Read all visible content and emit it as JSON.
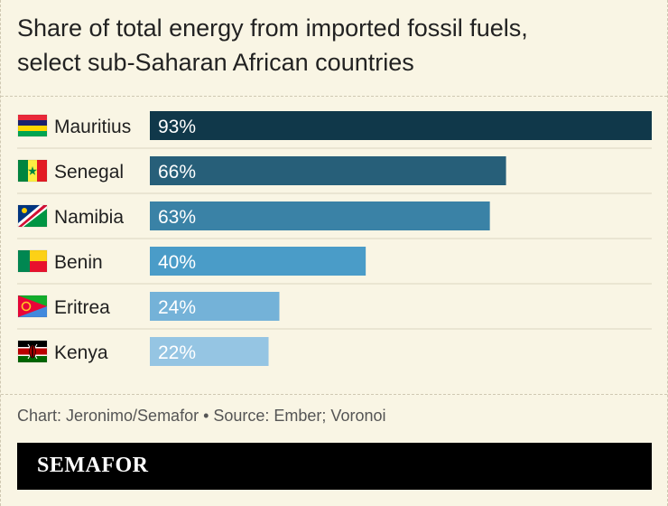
{
  "header": {
    "title_line1": "Share of total energy from imported fossil fuels,",
    "title_line2": "select sub-Saharan African countries"
  },
  "footer": {
    "source": "Chart: Jeronimo/Semafor • Source: Ember; Voronoi",
    "brand": "SEMAFOR"
  },
  "chart_data": {
    "type": "bar",
    "orientation": "horizontal",
    "title": "Share of total energy from imported fossil fuels, select sub-Saharan African countries",
    "categories": [
      "Mauritius",
      "Senegal",
      "Namibia",
      "Benin",
      "Eritrea",
      "Kenya"
    ],
    "values": [
      93,
      66,
      63,
      40,
      24,
      22
    ],
    "value_labels": [
      "93%",
      "66%",
      "63%",
      "40%",
      "24%",
      "22%"
    ],
    "xlim": [
      0,
      93
    ],
    "bar_colors": [
      "#10384a",
      "#275f79",
      "#3a82a6",
      "#4a9cc8",
      "#74b2d8",
      "#95c5e3"
    ],
    "flag_icons": [
      "mauritius-flag-icon",
      "senegal-flag-icon",
      "namibia-flag-icon",
      "benin-flag-icon",
      "eritrea-flag-icon",
      "kenya-flag-icon"
    ],
    "grid": false
  },
  "colors": {
    "background": "#f9f5e4",
    "row_separator": "#dcd5bf",
    "brand_bar": "#000000"
  }
}
